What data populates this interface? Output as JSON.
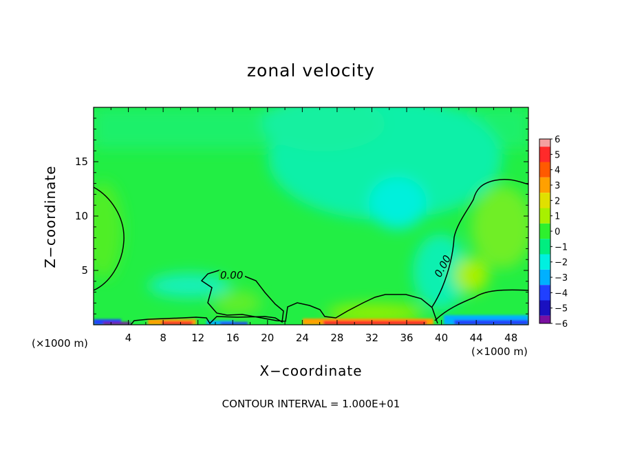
{
  "chart_data": {
    "type": "heatmap",
    "title": "zonal velocity",
    "xlabel": "X−coordinate",
    "ylabel": "Z−coordinate",
    "x_unit_label": "(×1000 m)",
    "x_unit_label_right": "(×1000 m)",
    "xlim": [
      0,
      50
    ],
    "ylim": [
      0,
      20
    ],
    "x_ticks": [
      4,
      8,
      12,
      16,
      20,
      24,
      28,
      32,
      36,
      40,
      44,
      48
    ],
    "y_ticks": [
      5,
      10,
      15
    ],
    "colorbar": {
      "levels": [
        6,
        5,
        4,
        3,
        2,
        1,
        0,
        -1,
        -2,
        -3,
        -4,
        -5,
        -6
      ],
      "labels": [
        "6",
        "5",
        "4",
        "3",
        "2",
        "1",
        "0",
        "−1",
        "−2",
        "−3",
        "−4",
        "−5",
        "−6"
      ],
      "colors": [
        "#f4a0a0",
        "#ff2a2a",
        "#ff5a00",
        "#ffa000",
        "#e0e000",
        "#a8f000",
        "#2ef02e",
        "#00ee80",
        "#00f0e0",
        "#00b0ff",
        "#2040ff",
        "#1a10c0",
        "#7a10a0"
      ]
    },
    "contour_label": "0.00",
    "contour_interval_text": "CONTOUR INTERVAL = 1.000E+01"
  }
}
